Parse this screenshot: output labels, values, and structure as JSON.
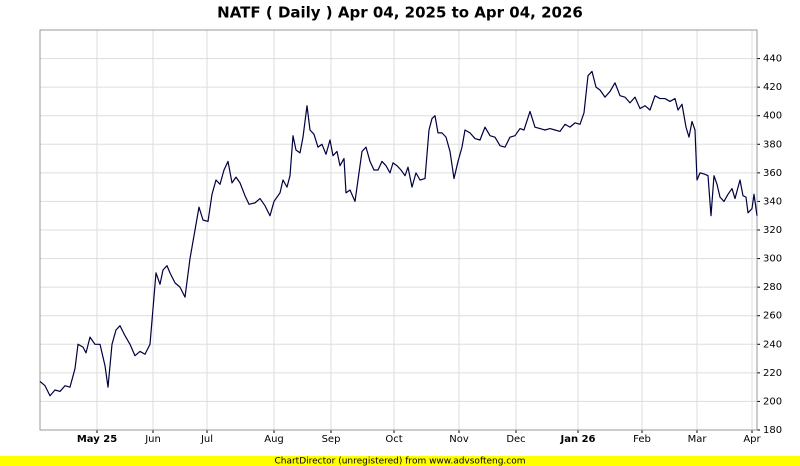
{
  "chart_data": {
    "type": "line",
    "title": "NATF ( Daily ) Apr 04, 2025 to Apr 04, 2026",
    "footer": "ChartDirector (unregistered) from www.advsofteng.com",
    "color": "#000040",
    "grid": true,
    "xlim": [
      0,
      717
    ],
    "ylim": [
      180,
      460
    ],
    "yticks": [
      180,
      200,
      220,
      240,
      260,
      280,
      300,
      320,
      340,
      360,
      380,
      400,
      420,
      440
    ],
    "xticks": [
      {
        "value": 57,
        "label": "May 25"
      },
      {
        "value": 113,
        "label": "Jun"
      },
      {
        "value": 167,
        "label": "Jul"
      },
      {
        "value": 234,
        "label": "Aug"
      },
      {
        "value": 291,
        "label": "Sep"
      },
      {
        "value": 354,
        "label": "Oct"
      },
      {
        "value": 419,
        "label": "Nov"
      },
      {
        "value": 476,
        "label": "Dec"
      },
      {
        "value": 538,
        "label": "Jan 26"
      },
      {
        "value": 602,
        "label": "Feb"
      },
      {
        "value": 657,
        "label": "Mar"
      },
      {
        "value": 712,
        "label": "Apr"
      }
    ],
    "x": [
      0,
      5,
      10,
      15,
      20,
      25,
      30,
      35,
      38,
      43,
      46,
      50,
      55,
      60,
      65,
      68,
      72,
      76,
      80,
      85,
      90,
      95,
      100,
      105,
      110,
      113,
      116,
      120,
      123,
      127,
      130,
      135,
      140,
      145,
      150,
      155,
      159,
      163,
      168,
      172,
      176,
      180,
      184,
      188,
      192,
      196,
      200,
      205,
      209,
      215,
      220,
      225,
      230,
      234,
      240,
      243,
      247,
      250,
      253,
      256,
      260,
      263,
      267,
      270,
      274,
      278,
      282,
      286,
      290,
      293,
      297,
      300,
      304,
      306,
      310,
      315,
      318,
      322,
      326,
      330,
      334,
      338,
      342,
      346,
      350,
      353,
      357,
      361,
      365,
      368,
      372,
      376,
      380,
      385,
      389,
      392,
      395,
      398,
      402,
      406,
      410,
      414,
      418,
      422,
      425,
      430,
      435,
      440,
      445,
      450,
      455,
      460,
      465,
      470,
      475,
      480,
      484,
      490,
      495,
      500,
      505,
      510,
      515,
      520,
      525,
      530,
      535,
      540,
      544,
      548,
      552,
      556,
      560,
      565,
      570,
      575,
      580,
      585,
      590,
      595,
      600,
      605,
      610,
      615,
      620,
      625,
      630,
      635,
      638,
      642,
      646,
      649,
      652,
      655,
      657,
      660,
      665,
      668,
      671,
      674,
      677,
      680,
      684,
      688,
      692,
      695,
      700,
      703,
      706,
      708,
      712,
      714,
      717
    ],
    "values": [
      214,
      211,
      204,
      208,
      207,
      211,
      210,
      223,
      240,
      238,
      234,
      245,
      240,
      240,
      225,
      210,
      240,
      250,
      253,
      246,
      240,
      232,
      235,
      233,
      240,
      265,
      290,
      282,
      292,
      295,
      290,
      283,
      280,
      273,
      300,
      320,
      336,
      327,
      326,
      345,
      355,
      352,
      362,
      368,
      353,
      357,
      353,
      344,
      338,
      339,
      342,
      337,
      330,
      340,
      346,
      355,
      350,
      358,
      386,
      376,
      374,
      385,
      407,
      390,
      387,
      378,
      380,
      373,
      383,
      372,
      375,
      365,
      370,
      346,
      348,
      340,
      355,
      375,
      378,
      368,
      362,
      362,
      368,
      365,
      360,
      367,
      365,
      362,
      358,
      364,
      350,
      360,
      355,
      356,
      390,
      398,
      400,
      388,
      388,
      385,
      375,
      356,
      368,
      378,
      390,
      388,
      384,
      383,
      392,
      386,
      385,
      379,
      378,
      385,
      386,
      391,
      390,
      403,
      392,
      391,
      390,
      391,
      390,
      389,
      394,
      392,
      395,
      394,
      402,
      428,
      431,
      420,
      418,
      413,
      417,
      423,
      414,
      413,
      409,
      413,
      405,
      407,
      404,
      414,
      412,
      412,
      410,
      412,
      404,
      408,
      392,
      385,
      396,
      390,
      355,
      360,
      359,
      358,
      330,
      358,
      352,
      343,
      340,
      345,
      349,
      342,
      355,
      344,
      343,
      332,
      335,
      345,
      330
    ]
  }
}
